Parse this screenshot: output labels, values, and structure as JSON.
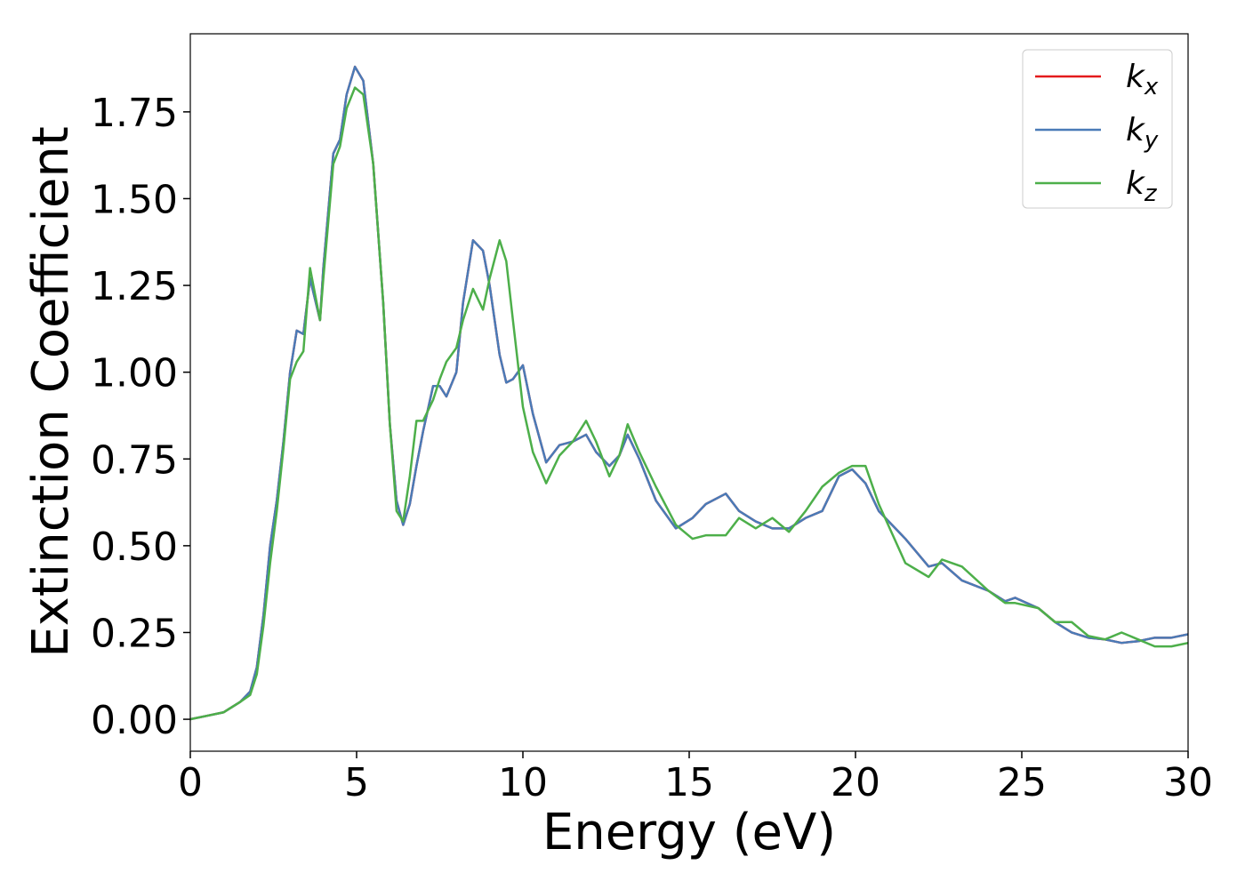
{
  "chart_data": {
    "type": "line",
    "xlabel": "Energy (eV)",
    "ylabel": "Extinction Coefficient",
    "x": [
      0,
      0.5,
      1,
      1.5,
      1.8,
      2,
      2.2,
      2.4,
      2.6,
      2.8,
      3,
      3.2,
      3.4,
      3.6,
      3.9,
      4.0,
      4.3,
      4.5,
      4.7,
      4.95,
      5.2,
      5.5,
      5.8,
      6.0,
      6.2,
      6.4,
      6.6,
      6.8,
      7.0,
      7.3,
      7.5,
      7.7,
      8.0,
      8.2,
      8.5,
      8.8,
      9.0,
      9.3,
      9.5,
      9.7,
      10.0,
      10.3,
      10.7,
      11.1,
      11.5,
      11.9,
      12.2,
      12.6,
      12.9,
      13.15,
      13.5,
      14,
      14.6,
      15.1,
      15.5,
      16.1,
      16.5,
      17,
      17.5,
      18,
      18.5,
      19,
      19.5,
      19.9,
      20.3,
      20.7,
      21.5,
      22.2,
      22.6,
      23.2,
      24,
      24.5,
      24.8,
      25.5,
      26,
      26.5,
      27,
      27.5,
      28,
      28.5,
      29,
      29.5,
      30
    ],
    "series": [
      {
        "name": "kx",
        "color": "#e41a1c",
        "values": [
          0,
          0.01,
          0.02,
          0.05,
          0.08,
          0.15,
          0.3,
          0.5,
          0.63,
          0.8,
          1.0,
          1.12,
          1.11,
          1.27,
          1.15,
          1.3,
          1.63,
          1.67,
          1.8,
          1.88,
          1.84,
          1.6,
          1.2,
          0.85,
          0.63,
          0.56,
          0.62,
          0.73,
          0.83,
          0.96,
          0.96,
          0.93,
          1.0,
          1.2,
          1.38,
          1.35,
          1.25,
          1.05,
          0.97,
          0.98,
          1.02,
          0.88,
          0.74,
          0.79,
          0.8,
          0.82,
          0.77,
          0.73,
          0.76,
          0.82,
          0.75,
          0.63,
          0.55,
          0.58,
          0.62,
          0.65,
          0.6,
          0.57,
          0.55,
          0.55,
          0.58,
          0.6,
          0.7,
          0.72,
          0.68,
          0.6,
          0.52,
          0.44,
          0.45,
          0.4,
          0.37,
          0.34,
          0.35,
          0.32,
          0.28,
          0.25,
          0.235,
          0.23,
          0.22,
          0.225,
          0.235,
          0.235,
          0.245
        ]
      },
      {
        "name": "ky",
        "color": "#4a7bb7",
        "values": [
          0,
          0.01,
          0.02,
          0.05,
          0.08,
          0.15,
          0.3,
          0.5,
          0.63,
          0.8,
          1.0,
          1.12,
          1.11,
          1.27,
          1.15,
          1.3,
          1.63,
          1.67,
          1.8,
          1.88,
          1.84,
          1.6,
          1.2,
          0.85,
          0.63,
          0.56,
          0.62,
          0.73,
          0.83,
          0.96,
          0.96,
          0.93,
          1.0,
          1.2,
          1.38,
          1.35,
          1.25,
          1.05,
          0.97,
          0.98,
          1.02,
          0.88,
          0.74,
          0.79,
          0.8,
          0.82,
          0.77,
          0.73,
          0.76,
          0.82,
          0.75,
          0.63,
          0.55,
          0.58,
          0.62,
          0.65,
          0.6,
          0.57,
          0.55,
          0.55,
          0.58,
          0.6,
          0.7,
          0.72,
          0.68,
          0.6,
          0.52,
          0.44,
          0.45,
          0.4,
          0.37,
          0.34,
          0.35,
          0.32,
          0.28,
          0.25,
          0.235,
          0.23,
          0.22,
          0.225,
          0.235,
          0.235,
          0.245
        ]
      },
      {
        "name": "kz",
        "color": "#4daf4a",
        "values": [
          0,
          0.01,
          0.02,
          0.05,
          0.07,
          0.13,
          0.27,
          0.45,
          0.6,
          0.78,
          0.98,
          1.03,
          1.06,
          1.3,
          1.15,
          1.27,
          1.6,
          1.65,
          1.76,
          1.82,
          1.8,
          1.6,
          1.2,
          0.85,
          0.6,
          0.57,
          0.7,
          0.86,
          0.86,
          0.92,
          0.98,
          1.03,
          1.07,
          1.15,
          1.24,
          1.18,
          1.27,
          1.38,
          1.32,
          1.15,
          0.9,
          0.77,
          0.68,
          0.76,
          0.8,
          0.86,
          0.8,
          0.7,
          0.76,
          0.85,
          0.77,
          0.67,
          0.56,
          0.52,
          0.53,
          0.53,
          0.58,
          0.55,
          0.58,
          0.54,
          0.6,
          0.67,
          0.71,
          0.73,
          0.73,
          0.62,
          0.45,
          0.41,
          0.46,
          0.44,
          0.37,
          0.335,
          0.335,
          0.32,
          0.28,
          0.28,
          0.24,
          0.23,
          0.25,
          0.23,
          0.21,
          0.21,
          0.22
        ]
      }
    ],
    "xlim": [
      0,
      30
    ],
    "xticks": [
      0,
      5,
      10,
      15,
      20,
      25,
      30
    ],
    "ylim": [
      -0.092,
      1.975
    ],
    "yticks": [
      {
        "value": 0,
        "label": "0.00"
      },
      {
        "value": 0.25,
        "label": "0.25"
      },
      {
        "value": 0.5,
        "label": "0.50"
      },
      {
        "value": 0.75,
        "label": "0.75"
      },
      {
        "value": 1.0,
        "label": "1.00"
      },
      {
        "value": 1.25,
        "label": "1.25"
      },
      {
        "value": 1.5,
        "label": "1.50"
      },
      {
        "value": 1.75,
        "label": "1.75"
      }
    ],
    "legend": "upper right",
    "grid": false
  }
}
